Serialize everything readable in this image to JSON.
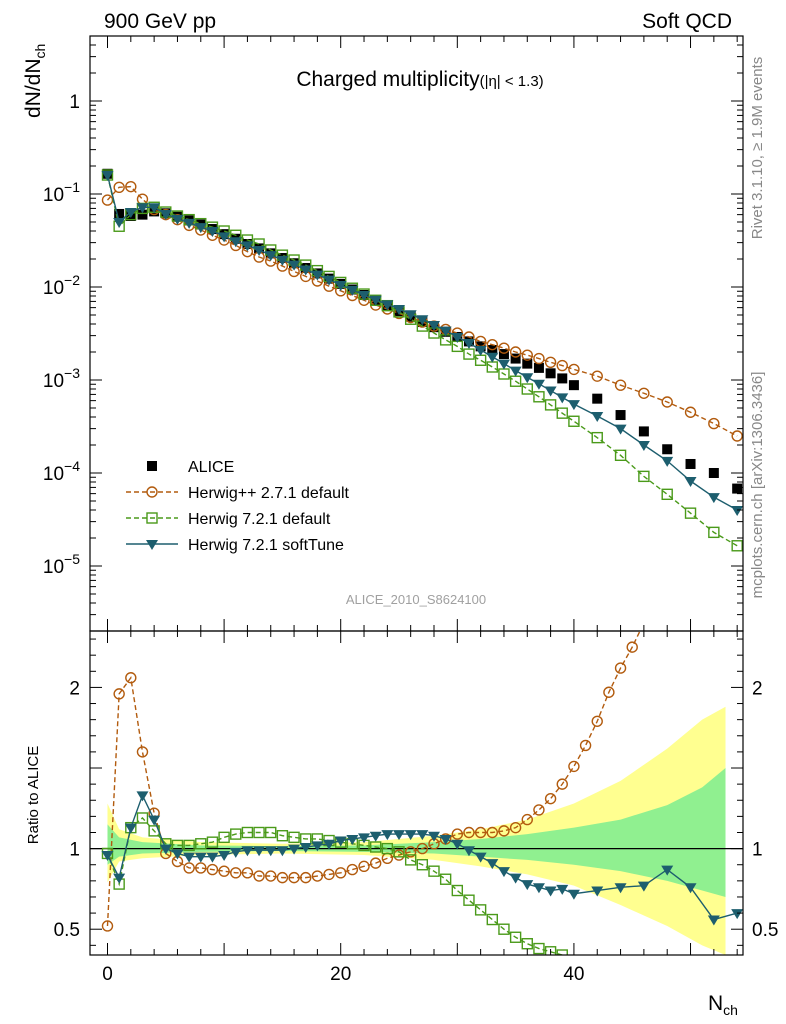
{
  "header": {
    "left": "900 GeV pp",
    "right": "Soft QCD"
  },
  "side_labels": {
    "rivet": "Rivet 3.1.10, ≥ 1.9M events",
    "mcplots": "mcplots.cern.ch [arXiv:1306.3436]"
  },
  "ref_name": "ALICE_2010_S8624100",
  "chart_data": {
    "type": "scatter",
    "title_main": "Charged multiplicity",
    "title_sub": "(|η| < 1.3)",
    "xlabel": "N",
    "xlabel_sub": "ch",
    "ylabel_main": "dN/dN",
    "ylabel_main_sub": "ch",
    "ylabel_ratio": "Ratio to ALICE",
    "xlim": [
      -1.5,
      54.5
    ],
    "ylim_main": [
      2e-06,
      5
    ],
    "ylog_main": true,
    "ylim_ratio": [
      0.34,
      2.35
    ],
    "x_ticks": [
      0,
      20,
      40
    ],
    "y_ticks_main": [
      {
        "mantissa": "10",
        "exp": "−5",
        "value": 1e-05
      },
      {
        "mantissa": "10",
        "exp": "−4",
        "value": 0.0001
      },
      {
        "mantissa": "10",
        "exp": "−3",
        "value": 0.001
      },
      {
        "mantissa": "10",
        "exp": "−2",
        "value": 0.01
      },
      {
        "mantissa": "10",
        "exp": "−1",
        "value": 0.1
      },
      {
        "mantissa": "1",
        "exp": "",
        "value": 1
      }
    ],
    "y_ticks_ratio": [
      {
        "label": "0.5",
        "value": 0.5
      },
      {
        "label": "1",
        "value": 1
      },
      {
        "label": "2",
        "value": 2
      }
    ],
    "legend_position": "lower-left",
    "band_colors": {
      "inner": "#90f090",
      "outer": "#ffff90"
    },
    "ratio_bands": [
      {
        "x": 0,
        "inner": [
          0.9,
          1.15
        ],
        "outer": [
          0.79,
          1.28
        ]
      },
      {
        "x": 1,
        "inner": [
          0.95,
          1.07
        ],
        "outer": [
          0.92,
          1.12
        ]
      },
      {
        "x": 3,
        "inner": [
          0.97,
          1.04
        ],
        "outer": [
          0.94,
          1.07
        ]
      },
      {
        "x": 8,
        "inner": [
          0.98,
          1.02
        ],
        "outer": [
          0.96,
          1.04
        ]
      },
      {
        "x": 15,
        "inner": [
          0.985,
          1.015
        ],
        "outer": [
          0.97,
          1.03
        ]
      },
      {
        "x": 22,
        "inner": [
          0.98,
          1.02
        ],
        "outer": [
          0.96,
          1.04
        ]
      },
      {
        "x": 28,
        "inner": [
          0.97,
          1.04
        ],
        "outer": [
          0.93,
          1.08
        ]
      },
      {
        "x": 32,
        "inner": [
          0.95,
          1.06
        ],
        "outer": [
          0.89,
          1.12
        ]
      },
      {
        "x": 36,
        "inner": [
          0.93,
          1.09
        ],
        "outer": [
          0.84,
          1.18
        ]
      },
      {
        "x": 40,
        "inner": [
          0.9,
          1.13
        ],
        "outer": [
          0.77,
          1.28
        ]
      },
      {
        "x": 44,
        "inner": [
          0.86,
          1.18
        ],
        "outer": [
          0.65,
          1.42
        ]
      },
      {
        "x": 48,
        "inner": [
          0.8,
          1.27
        ],
        "outer": [
          0.52,
          1.62
        ]
      },
      {
        "x": 51,
        "inner": [
          0.74,
          1.38
        ],
        "outer": [
          0.4,
          1.8
        ]
      },
      {
        "x": 53,
        "inner": [
          0.7,
          1.5
        ],
        "outer": [
          0.34,
          1.88
        ]
      }
    ],
    "series": [
      {
        "name": "ALICE",
        "style": "data",
        "color": "#000000",
        "marker": "square-filled",
        "x": [
          0,
          1,
          2,
          3,
          4,
          5,
          6,
          7,
          8,
          9,
          10,
          11,
          12,
          13,
          14,
          15,
          16,
          17,
          18,
          19,
          20,
          21,
          22,
          23,
          24,
          25,
          26,
          27,
          28,
          29,
          30,
          31,
          32,
          33,
          34,
          35,
          36,
          37,
          38,
          39,
          40,
          42,
          44,
          46,
          48,
          50,
          52,
          54
        ],
        "y": [
          0.165,
          0.061,
          0.058,
          0.06,
          0.065,
          0.062,
          0.057,
          0.052,
          0.047,
          0.042,
          0.037,
          0.033,
          0.029,
          0.026,
          0.023,
          0.0205,
          0.018,
          0.016,
          0.014,
          0.0123,
          0.0108,
          0.0094,
          0.0082,
          0.0072,
          0.0063,
          0.0055,
          0.0048,
          0.0042,
          0.0037,
          0.0033,
          0.0029,
          0.0026,
          0.0023,
          0.0021,
          0.0019,
          0.0017,
          0.0015,
          0.00135,
          0.00118,
          0.00104,
          0.00088,
          0.00063,
          0.00042,
          0.00028,
          0.00018,
          0.000125,
          0.0001,
          6.8e-05
        ]
      },
      {
        "name": "Herwig++ 2.7.1 default",
        "style": "dashed",
        "color": "#b25b0e",
        "marker": "circle-open",
        "x": [
          0,
          1,
          2,
          3,
          4,
          5,
          6,
          7,
          8,
          9,
          10,
          11,
          12,
          13,
          14,
          15,
          16,
          17,
          18,
          19,
          20,
          21,
          22,
          23,
          24,
          25,
          26,
          27,
          28,
          29,
          30,
          31,
          32,
          33,
          34,
          35,
          36,
          37,
          38,
          39,
          40,
          42,
          44,
          46,
          48,
          50,
          52,
          54
        ],
        "y": [
          0.086,
          0.118,
          0.12,
          0.088,
          0.068,
          0.06,
          0.053,
          0.046,
          0.041,
          0.036,
          0.032,
          0.028,
          0.024,
          0.021,
          0.019,
          0.0168,
          0.0147,
          0.013,
          0.0116,
          0.0102,
          0.0091,
          0.0081,
          0.0072,
          0.0064,
          0.0058,
          0.0052,
          0.0047,
          0.0042,
          0.0038,
          0.0035,
          0.0032,
          0.0029,
          0.0026,
          0.0024,
          0.0022,
          0.002,
          0.00185,
          0.0017,
          0.00155,
          0.00143,
          0.0013,
          0.0011,
          0.00088,
          0.00072,
          0.00058,
          0.00045,
          0.00034,
          0.00025
        ]
      },
      {
        "name": "Herwig 7.2.1 default",
        "style": "dashed",
        "color": "#4a9a1a",
        "marker": "square-open",
        "x": [
          0,
          1,
          2,
          3,
          4,
          5,
          6,
          7,
          8,
          9,
          10,
          11,
          12,
          13,
          14,
          15,
          16,
          17,
          18,
          19,
          20,
          21,
          22,
          23,
          24,
          25,
          26,
          27,
          28,
          29,
          30,
          31,
          32,
          33,
          34,
          35,
          36,
          37,
          38,
          39,
          40,
          42,
          44,
          46,
          48,
          50,
          52,
          54
        ],
        "y": [
          0.16,
          0.045,
          0.06,
          0.07,
          0.072,
          0.064,
          0.058,
          0.053,
          0.048,
          0.044,
          0.04,
          0.036,
          0.032,
          0.029,
          0.025,
          0.022,
          0.0195,
          0.0172,
          0.015,
          0.013,
          0.0112,
          0.0097,
          0.0084,
          0.0072,
          0.0063,
          0.0054,
          0.0045,
          0.0038,
          0.0032,
          0.0027,
          0.0023,
          0.0019,
          0.00163,
          0.00138,
          0.00116,
          0.00097,
          0.0008,
          0.00066,
          0.00054,
          0.00044,
          0.00036,
          0.00024,
          0.000155,
          9.2e-05,
          5.9e-05,
          3.7e-05,
          2.3e-05,
          1.65e-05
        ]
      },
      {
        "name": "Herwig 7.2.1 softTune",
        "style": "solid",
        "color": "#1d5e6e",
        "marker": "triangle-down-filled",
        "x": [
          0,
          1,
          2,
          3,
          4,
          5,
          6,
          7,
          8,
          9,
          10,
          11,
          12,
          13,
          14,
          15,
          16,
          17,
          18,
          19,
          20,
          21,
          22,
          23,
          24,
          25,
          26,
          27,
          28,
          29,
          30,
          31,
          32,
          33,
          34,
          35,
          36,
          37,
          38,
          39,
          40,
          42,
          44,
          46,
          48,
          50,
          52,
          54
        ],
        "y": [
          0.16,
          0.05,
          0.064,
          0.072,
          0.072,
          0.061,
          0.054,
          0.049,
          0.044,
          0.04,
          0.035,
          0.031,
          0.028,
          0.025,
          0.022,
          0.0196,
          0.0174,
          0.0154,
          0.0136,
          0.012,
          0.0105,
          0.0093,
          0.0082,
          0.0073,
          0.0065,
          0.0058,
          0.0051,
          0.0045,
          0.0039,
          0.0034,
          0.0029,
          0.0025,
          0.0021,
          0.00178,
          0.0015,
          0.00126,
          0.00107,
          0.00091,
          0.00077,
          0.00065,
          0.00055,
          0.00041,
          0.0003,
          0.0002,
          0.000135,
          8.2e-05,
          5.5e-05,
          4e-05
        ]
      }
    ],
    "ratio_series": [
      {
        "name": "Herwig++ 2.7.1 default",
        "x": [
          0,
          1,
          2,
          3,
          4,
          5,
          6,
          7,
          8,
          9,
          10,
          11,
          12,
          13,
          14,
          15,
          16,
          17,
          18,
          19,
          20,
          21,
          22,
          23,
          24,
          25,
          26,
          27,
          28,
          29,
          30,
          31,
          32,
          33,
          34,
          35,
          36,
          37,
          38,
          39,
          40,
          41,
          42,
          43,
          44,
          45,
          46
        ],
        "y": [
          0.52,
          1.96,
          2.06,
          1.6,
          1.22,
          0.97,
          0.92,
          0.88,
          0.88,
          0.87,
          0.86,
          0.85,
          0.85,
          0.83,
          0.83,
          0.82,
          0.82,
          0.82,
          0.83,
          0.84,
          0.85,
          0.87,
          0.89,
          0.91,
          0.94,
          0.96,
          0.98,
          1.0,
          1.03,
          1.06,
          1.09,
          1.1,
          1.1,
          1.1,
          1.11,
          1.13,
          1.18,
          1.24,
          1.31,
          1.4,
          1.51,
          1.64,
          1.79,
          1.97,
          2.12,
          2.25,
          2.4
        ]
      },
      {
        "name": "Herwig 7.2.1 default",
        "x": [
          0,
          1,
          2,
          3,
          4,
          5,
          6,
          7,
          8,
          9,
          10,
          11,
          12,
          13,
          14,
          15,
          16,
          17,
          18,
          19,
          20,
          21,
          22,
          23,
          24,
          25,
          26,
          27,
          28,
          29,
          30,
          31,
          32,
          33,
          34,
          35,
          36,
          37,
          38,
          39
        ],
        "y": [
          0.97,
          0.78,
          1.13,
          1.19,
          1.11,
          1.03,
          1.02,
          1.02,
          1.03,
          1.04,
          1.07,
          1.09,
          1.1,
          1.1,
          1.1,
          1.08,
          1.07,
          1.06,
          1.06,
          1.05,
          1.04,
          1.03,
          1.02,
          1.01,
          1.0,
          0.98,
          0.93,
          0.9,
          0.86,
          0.81,
          0.74,
          0.68,
          0.62,
          0.56,
          0.5,
          0.45,
          0.41,
          0.38,
          0.36,
          0.34
        ]
      },
      {
        "name": "Herwig 7.2.1 softTune",
        "x": [
          0,
          1,
          2,
          3,
          4,
          5,
          6,
          7,
          8,
          9,
          10,
          11,
          12,
          13,
          14,
          15,
          16,
          17,
          18,
          19,
          20,
          21,
          22,
          23,
          24,
          25,
          26,
          27,
          28,
          29,
          30,
          31,
          32,
          33,
          34,
          35,
          36,
          37,
          38,
          39,
          40,
          42,
          44,
          46,
          48,
          50,
          52,
          54
        ],
        "y": [
          0.96,
          0.82,
          1.13,
          1.33,
          1.18,
          1.0,
          0.97,
          0.95,
          0.95,
          0.95,
          0.96,
          0.98,
          0.99,
          0.99,
          0.99,
          0.99,
          1.0,
          1.01,
          1.02,
          1.03,
          1.05,
          1.06,
          1.07,
          1.08,
          1.09,
          1.09,
          1.09,
          1.09,
          1.08,
          1.06,
          1.03,
          0.99,
          0.95,
          0.91,
          0.86,
          0.82,
          0.78,
          0.76,
          0.74,
          0.75,
          0.72,
          0.74,
          0.76,
          0.77,
          0.87,
          0.76,
          0.56,
          0.6
        ]
      }
    ]
  }
}
